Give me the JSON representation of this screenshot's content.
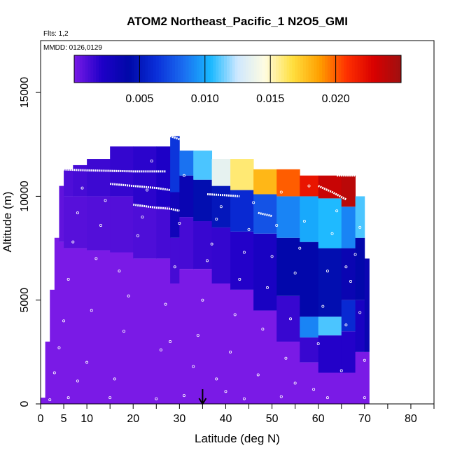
{
  "chart_data": {
    "type": "heatmap",
    "title": "ATOM2 Northeast_Pacific_1 N2O5_GMI",
    "flights_label": "Flts: 1,2",
    "date_label": "MMDD: 0126,0129",
    "xlabel": "Latitude (deg N)",
    "ylabel": "Altitude (m)",
    "xlim": [
      0,
      85
    ],
    "ylim": [
      0,
      17500
    ],
    "x_tick_labels": [
      "0",
      "5",
      "10",
      "20",
      "30",
      "40",
      "50",
      "60",
      "70",
      "80"
    ],
    "x_tick_values": [
      0,
      5,
      10,
      20,
      30,
      40,
      50,
      60,
      70,
      80
    ],
    "x_minor_ticks": [
      15,
      25,
      35,
      45,
      55,
      65,
      75,
      85
    ],
    "y_tick_labels": [
      "0",
      "5000",
      "10000",
      "15000"
    ],
    "y_tick_values": [
      0,
      5000,
      10000,
      15000
    ],
    "colorbar": {
      "range": [
        0,
        0.025
      ],
      "tick_labels": [
        "0.005",
        "0.010",
        "0.015",
        "0.020"
      ],
      "tick_values": [
        0.005,
        0.01,
        0.015,
        0.02
      ],
      "colors": [
        "#7a1ae6",
        "#1f00c8",
        "#0008a8",
        "#0a2ed8",
        "#1a6cf0",
        "#18b8ff",
        "#cfe8ff",
        "#fffce0",
        "#ffe040",
        "#ffa000",
        "#ff3000",
        "#d80000",
        "#9e1010"
      ]
    },
    "marker_latitude": 35,
    "columns": [
      {
        "x0": 0,
        "x1": 1,
        "top": 300,
        "segments": [
          [
            0,
            300,
            0.0
          ]
        ]
      },
      {
        "x0": 1,
        "x1": 2,
        "top": 3000,
        "segments": [
          [
            0,
            3000,
            0.0
          ]
        ]
      },
      {
        "x0": 2,
        "x1": 3,
        "top": 5500,
        "segments": [
          [
            0,
            5500,
            0.0
          ]
        ]
      },
      {
        "x0": 3,
        "x1": 4,
        "top": 8000,
        "segments": [
          [
            0,
            8000,
            0.0
          ]
        ]
      },
      {
        "x0": 4,
        "x1": 5,
        "top": 10500,
        "segments": [
          [
            0,
            7800,
            0.0
          ],
          [
            7800,
            10500,
            0.0006
          ]
        ]
      },
      {
        "x0": 5,
        "x1": 7,
        "top": 11300,
        "segments": [
          [
            0,
            7500,
            0.0
          ],
          [
            7500,
            10000,
            0.0008
          ],
          [
            10000,
            11300,
            0.001
          ]
        ]
      },
      {
        "x0": 7,
        "x1": 10,
        "top": 11500,
        "segments": [
          [
            0,
            7500,
            0.0
          ],
          [
            7500,
            10000,
            0.0008
          ],
          [
            10000,
            11500,
            0.0012
          ]
        ]
      },
      {
        "x0": 10,
        "x1": 15,
        "top": 11800,
        "segments": [
          [
            0,
            7400,
            0.0
          ],
          [
            7400,
            10000,
            0.0009
          ],
          [
            10000,
            11800,
            0.0014
          ]
        ]
      },
      {
        "x0": 15,
        "x1": 20,
        "top": 12400,
        "segments": [
          [
            0,
            7300,
            0.0
          ],
          [
            7300,
            10000,
            0.0009
          ],
          [
            10000,
            12400,
            0.0016
          ]
        ]
      },
      {
        "x0": 20,
        "x1": 25,
        "top": 12400,
        "segments": [
          [
            0,
            7000,
            0.0
          ],
          [
            7000,
            9500,
            0.001
          ],
          [
            9500,
            12400,
            0.0018
          ]
        ]
      },
      {
        "x0": 25,
        "x1": 28,
        "top": 12400,
        "segments": [
          [
            0,
            7000,
            0.0
          ],
          [
            7000,
            9500,
            0.0012
          ],
          [
            9500,
            12400,
            0.0022
          ]
        ]
      },
      {
        "x0": 28,
        "x1": 30,
        "top": 12900,
        "segments": [
          [
            0,
            5800,
            0.0
          ],
          [
            5800,
            8000,
            0.0012
          ],
          [
            8000,
            10200,
            0.003
          ],
          [
            10200,
            12900,
            0.0065
          ]
        ]
      },
      {
        "x0": 30,
        "x1": 33,
        "top": 12200,
        "segments": [
          [
            0,
            6500,
            0.0
          ],
          [
            6500,
            9000,
            0.0012
          ],
          [
            9000,
            11000,
            0.0035
          ],
          [
            11000,
            12200,
            0.0085
          ]
        ]
      },
      {
        "x0": 33,
        "x1": 37,
        "top": 12200,
        "segments": [
          [
            0,
            6500,
            0.0
          ],
          [
            6500,
            8800,
            0.0015
          ],
          [
            8800,
            10800,
            0.0045
          ],
          [
            10800,
            12200,
            0.011
          ]
        ]
      },
      {
        "x0": 37,
        "x1": 41,
        "top": 11800,
        "segments": [
          [
            0,
            5800,
            0.0
          ],
          [
            5800,
            8500,
            0.0016
          ],
          [
            8500,
            10500,
            0.005
          ],
          [
            10500,
            11800,
            0.0135
          ]
        ]
      },
      {
        "x0": 41,
        "x1": 46,
        "top": 11800,
        "segments": [
          [
            0,
            5500,
            0.0
          ],
          [
            5500,
            8300,
            0.002
          ],
          [
            8300,
            10300,
            0.006
          ],
          [
            10300,
            11800,
            0.016
          ]
        ]
      },
      {
        "x0": 46,
        "x1": 51,
        "top": 11300,
        "segments": [
          [
            0,
            4500,
            0.0
          ],
          [
            4500,
            8200,
            0.0025
          ],
          [
            8200,
            10100,
            0.0075
          ],
          [
            10100,
            11300,
            0.018
          ]
        ]
      },
      {
        "x0": 51,
        "x1": 56,
        "top": 11300,
        "segments": [
          [
            0,
            3000,
            0.0
          ],
          [
            3000,
            5200,
            0.0015
          ],
          [
            5200,
            8000,
            0.004
          ],
          [
            8000,
            10000,
            0.009
          ],
          [
            10000,
            11300,
            0.02
          ]
        ]
      },
      {
        "x0": 56,
        "x1": 60,
        "top": 11000,
        "segments": [
          [
            0,
            2000,
            0.0
          ],
          [
            2000,
            3200,
            0.0015
          ],
          [
            3200,
            4200,
            0.009
          ],
          [
            4200,
            7800,
            0.004
          ],
          [
            7800,
            10000,
            0.01
          ],
          [
            10000,
            11000,
            0.022
          ]
        ]
      },
      {
        "x0": 60,
        "x1": 65,
        "top": 11000,
        "segments": [
          [
            0,
            1500,
            0.0
          ],
          [
            1500,
            3300,
            0.002
          ],
          [
            3300,
            4200,
            0.011
          ],
          [
            4200,
            7500,
            0.0045
          ],
          [
            7500,
            9900,
            0.0105
          ],
          [
            9900,
            11000,
            0.0235
          ]
        ]
      },
      {
        "x0": 65,
        "x1": 68,
        "top": 11000,
        "segments": [
          [
            0,
            1500,
            0.0
          ],
          [
            1500,
            3500,
            0.002
          ],
          [
            3500,
            5000,
            0.006
          ],
          [
            5000,
            7500,
            0.0035
          ],
          [
            7500,
            9500,
            0.009
          ],
          [
            9500,
            11000,
            0.024
          ]
        ]
      },
      {
        "x0": 68,
        "x1": 70,
        "top": 10000,
        "segments": [
          [
            0,
            2500,
            0.0
          ],
          [
            2500,
            5000,
            0.0025
          ],
          [
            5000,
            8000,
            0.004
          ],
          [
            8000,
            10000,
            0.011
          ]
        ]
      },
      {
        "x0": 70,
        "x1": 71,
        "top": 7000,
        "segments": [
          [
            0,
            2500,
            0.0
          ],
          [
            2500,
            7000,
            0.0035
          ]
        ]
      }
    ],
    "flight_tracks": [
      [
        [
          4,
          11300
        ],
        [
          10,
          11250
        ],
        [
          20,
          11200
        ],
        [
          27,
          11200
        ]
      ],
      [
        [
          15,
          10600
        ],
        [
          20,
          10500
        ],
        [
          25,
          10400
        ],
        [
          28,
          10300
        ]
      ],
      [
        [
          28,
          12900
        ],
        [
          30,
          12750
        ],
        [
          33,
          12700
        ]
      ],
      [
        [
          20,
          9600
        ],
        [
          25,
          9450
        ],
        [
          28,
          9400
        ],
        [
          30,
          9300
        ]
      ],
      [
        [
          36,
          10100
        ],
        [
          40,
          10050
        ],
        [
          43,
          10000
        ]
      ],
      [
        [
          47,
          9200
        ],
        [
          50,
          9050
        ]
      ],
      [
        [
          60,
          10500
        ],
        [
          63,
          10200
        ],
        [
          66,
          9850
        ]
      ],
      [
        [
          64,
          11000
        ],
        [
          67,
          11000
        ],
        [
          70,
          11000
        ]
      ]
    ],
    "scatter_points": [
      [
        2,
        200
      ],
      [
        3,
        1500
      ],
      [
        4,
        2700
      ],
      [
        5,
        4000
      ],
      [
        6,
        6000
      ],
      [
        7,
        7800
      ],
      [
        8,
        9200
      ],
      [
        9,
        10400
      ],
      [
        10,
        2000
      ],
      [
        11,
        4500
      ],
      [
        12,
        7000
      ],
      [
        13,
        8600
      ],
      [
        14,
        9800
      ],
      [
        16,
        1200
      ],
      [
        18,
        3500
      ],
      [
        19,
        5200
      ],
      [
        21,
        8100
      ],
      [
        22,
        9000
      ],
      [
        23,
        10300
      ],
      [
        24,
        11700
      ],
      [
        26,
        2600
      ],
      [
        27,
        4800
      ],
      [
        29,
        6600
      ],
      [
        30,
        8700
      ],
      [
        31,
        11000
      ],
      [
        32,
        12300
      ],
      [
        33,
        1800
      ],
      [
        34,
        3300
      ],
      [
        35,
        5000
      ],
      [
        36,
        6900
      ],
      [
        37,
        7700
      ],
      [
        38,
        8900
      ],
      [
        39,
        9500
      ],
      [
        40,
        600
      ],
      [
        41,
        2500
      ],
      [
        42,
        4300
      ],
      [
        43,
        6000
      ],
      [
        44,
        7300
      ],
      [
        45,
        8400
      ],
      [
        46,
        9700
      ],
      [
        47,
        1400
      ],
      [
        48,
        3600
      ],
      [
        49,
        5600
      ],
      [
        50,
        7100
      ],
      [
        51,
        8600
      ],
      [
        52,
        10200
      ],
      [
        53,
        2200
      ],
      [
        54,
        4100
      ],
      [
        55,
        6300
      ],
      [
        56,
        7500
      ],
      [
        57,
        8800
      ],
      [
        58,
        10500
      ],
      [
        59,
        700
      ],
      [
        60,
        2900
      ],
      [
        61,
        4700
      ],
      [
        62,
        6400
      ],
      [
        63,
        8200
      ],
      [
        64,
        9300
      ],
      [
        65,
        1600
      ],
      [
        66,
        3800
      ],
      [
        67,
        5900
      ],
      [
        68,
        7200
      ],
      [
        69,
        4400
      ],
      [
        70,
        2100
      ],
      [
        70,
        300
      ],
      [
        6,
        300
      ],
      [
        15,
        300
      ],
      [
        25,
        250
      ],
      [
        31,
        400
      ],
      [
        44,
        250
      ],
      [
        52,
        350
      ],
      [
        62,
        300
      ],
      [
        8,
        1100
      ],
      [
        17,
        6400
      ],
      [
        28,
        3000
      ],
      [
        38,
        1200
      ],
      [
        55,
        1000
      ],
      [
        66,
        6600
      ],
      [
        69,
        8500
      ]
    ]
  }
}
